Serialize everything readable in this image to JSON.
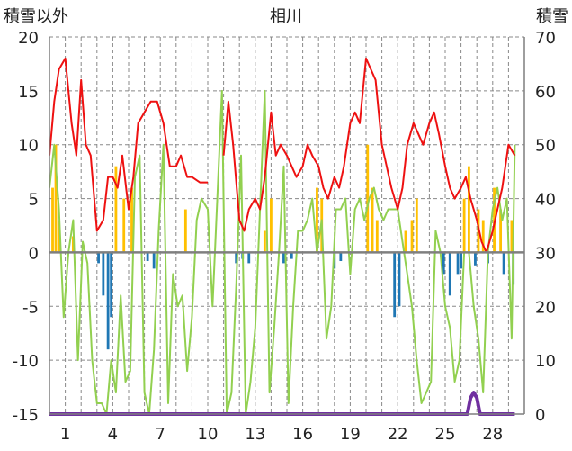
{
  "chart_data": {
    "type": "line",
    "title": "相川",
    "ylabel_left": "積雪以外",
    "ylabel_right": "積雪",
    "ylim_left": [
      -15,
      20
    ],
    "ylim_right": [
      0,
      70
    ],
    "yticks_left": [
      20,
      15,
      10,
      5,
      0,
      -5,
      -10,
      -15
    ],
    "yticks_right": [
      70,
      60,
      50,
      40,
      30,
      20,
      10,
      0
    ],
    "xlim": [
      0,
      30
    ],
    "xticks": [
      "1",
      "4",
      "7",
      "10",
      "13",
      "16",
      "19",
      "22",
      "25",
      "28"
    ],
    "xtick_values": [
      1,
      4,
      7,
      10,
      13,
      16,
      19,
      22,
      25,
      28
    ],
    "grid": true,
    "colors": {
      "temperature": "#ee1111",
      "humidity": "#92d050",
      "precip_positive": "#ffc000",
      "precip_negative": "#1f77b4",
      "snow_depth": "#7030a0",
      "grid": "#888888",
      "axis": "#7f7f7f"
    },
    "series": [
      {
        "key": "temperature",
        "axis": "left",
        "x": [
          0,
          0.3,
          0.6,
          1.0,
          1.4,
          1.7,
          2.0,
          2.3,
          2.6,
          3.0,
          3.4,
          3.7,
          4.0,
          4.3,
          4.6,
          5.0,
          5.3,
          5.6,
          6.0,
          6.4,
          6.8,
          7.2,
          7.6,
          8.0,
          8.3,
          8.7,
          9.0,
          9.5,
          10.0
        ],
        "y": [
          9,
          14,
          17,
          18,
          12,
          9,
          16,
          10,
          9,
          2,
          3,
          7,
          7,
          6,
          9,
          4,
          7,
          12,
          13,
          14,
          14,
          12,
          8,
          8,
          9,
          7,
          7,
          6.5,
          6.5
        ]
      },
      {
        "key": "temperature",
        "axis": "left",
        "x": [
          11.0,
          11.3,
          11.6,
          12.0,
          12.3,
          12.6,
          13.0,
          13.3,
          13.6,
          14.0,
          14.3,
          14.6,
          15.0,
          15.3,
          15.6,
          16.0,
          16.3,
          16.6,
          17.0,
          17.3,
          17.6,
          18.0,
          18.3,
          18.6,
          19.0,
          19.3,
          19.6,
          20.0,
          20.3,
          20.6,
          21.0,
          21.3,
          21.6,
          22.0,
          22.3,
          22.6,
          23.0,
          23.3,
          23.6,
          24.0,
          24.3,
          24.6,
          25.0,
          25.3,
          25.6,
          26.0,
          26.3,
          26.6,
          27.0,
          27.3,
          27.6,
          28.0,
          28.3,
          28.6,
          29.0,
          29.4
        ],
        "y": [
          9,
          14,
          10,
          3,
          2,
          4,
          5,
          4,
          7,
          13,
          9,
          10,
          9,
          8,
          7,
          8,
          10,
          9,
          8,
          6,
          5,
          7,
          6,
          8,
          12,
          13,
          12,
          18,
          17,
          16,
          10,
          8,
          6,
          4,
          6,
          10,
          12,
          11,
          10,
          12,
          13,
          11,
          8,
          6,
          5,
          6,
          7,
          5,
          3,
          1,
          0,
          2,
          4,
          6,
          10,
          9
        ]
      },
      {
        "key": "humidity",
        "axis": "left",
        "x": [
          0,
          0.3,
          0.6,
          0.9,
          1.2,
          1.5,
          1.8,
          2.1,
          2.4,
          2.7,
          3.0,
          3.3,
          3.6,
          3.9,
          4.2,
          4.5,
          4.8,
          5.1,
          5.4,
          5.7,
          6.0,
          6.3,
          6.6,
          6.9,
          7.2,
          7.5,
          7.8,
          8.1,
          8.4,
          8.7,
          9.0,
          9.3,
          9.6,
          10.0,
          10.3,
          10.6,
          10.9,
          11.2,
          11.5,
          11.8,
          12.1,
          12.4,
          12.7,
          13.0,
          13.3,
          13.6,
          13.9,
          14.2,
          14.5,
          14.8,
          15.1,
          15.4,
          15.7,
          16.0,
          16.3,
          16.6,
          16.9,
          17.2,
          17.5,
          17.8,
          18.1,
          18.4,
          18.7,
          19.0,
          19.3,
          19.6,
          19.9,
          20.2,
          20.5,
          20.8,
          21.1,
          21.4,
          21.7,
          22.0,
          22.3,
          22.6,
          22.9,
          23.2,
          23.5,
          23.8,
          24.1,
          24.4,
          24.7,
          25.0,
          25.3,
          25.6,
          25.9,
          26.2,
          26.5,
          26.8,
          27.1,
          27.4,
          27.7,
          28.0,
          28.3,
          28.6,
          28.9,
          29.2,
          29.4
        ],
        "y": [
          6,
          10,
          4,
          -6,
          0,
          3,
          -10,
          1,
          -1,
          -10,
          -14,
          -14,
          -15,
          -10,
          -13,
          -4,
          -12,
          -11,
          7,
          9,
          -13,
          -15,
          -9,
          2,
          10,
          -14,
          -2,
          -5,
          -4,
          -11,
          -6,
          3,
          5,
          4,
          -5,
          5,
          15,
          -15,
          -13,
          -3,
          9,
          -15,
          -12,
          -7,
          4,
          15,
          -13,
          -7,
          0,
          8,
          -14,
          -5,
          2,
          2,
          3,
          5,
          0,
          3,
          -8,
          -5,
          4,
          4,
          5,
          -2,
          4,
          5,
          3,
          5,
          6,
          4,
          3,
          4,
          4,
          4,
          1,
          -2,
          -5,
          -10,
          -14,
          -13,
          -12,
          2,
          0,
          -5,
          -7,
          -12,
          -10,
          0,
          0,
          -5,
          -8,
          -13,
          0,
          4,
          6,
          3,
          5,
          -8,
          10
        ]
      },
      {
        "key": "snow_depth",
        "axis": "right",
        "x": [
          0,
          26.4,
          26.6,
          26.8,
          27.0,
          27.2,
          29.4
        ],
        "y": [
          0,
          0,
          3,
          4,
          3,
          0,
          0
        ]
      }
    ],
    "precip_bars": {
      "axis": "left",
      "x": [
        0.2,
        0.4,
        0.6,
        1.5,
        4.2,
        4.7,
        5.2,
        8.6,
        13.6,
        14.0,
        16.9,
        17.2,
        20.1,
        20.4,
        20.7,
        22.5,
        22.9,
        23.2,
        26.2,
        26.5,
        27.1,
        27.4,
        28.1,
        28.5,
        29.2,
        3.1,
        3.4,
        3.7,
        3.9,
        6.2,
        6.6,
        11.8,
        12.2,
        12.6,
        14.8,
        15.3,
        18.0,
        18.4,
        21.8,
        22.1,
        24.9,
        25.3,
        25.8,
        26.0,
        26.9,
        27.7,
        28.7,
        29.3
      ],
      "y": [
        6,
        10,
        3,
        1.5,
        8,
        5,
        6,
        4,
        2,
        5,
        6,
        5,
        10,
        6,
        3,
        2,
        3,
        5,
        5,
        8,
        4,
        3,
        6,
        4,
        3,
        -1,
        -4,
        -9,
        -6,
        -0.8,
        -1.5,
        -1,
        -0.6,
        -1,
        -1,
        -0.6,
        -1.5,
        -0.8,
        -6,
        -5,
        -2,
        -4,
        -2,
        -1.5,
        -1.2,
        -1,
        -2,
        -3
      ]
    }
  }
}
